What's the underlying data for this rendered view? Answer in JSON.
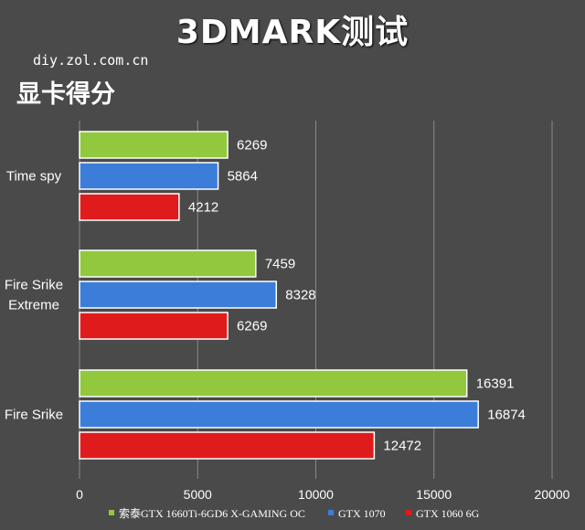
{
  "page": {
    "title": "3DMARK测试",
    "site": "diy.zol.com.cn",
    "subtitle": "显卡得分"
  },
  "chart_data": {
    "type": "bar",
    "orientation": "horizontal",
    "title": "3DMARK测试",
    "subtitle": "显卡得分",
    "categories": [
      "Time spy",
      "Fire Srike Extreme",
      "Fire Srike"
    ],
    "category_lines": [
      [
        "Time spy"
      ],
      [
        "Fire Srike",
        "Extreme"
      ],
      [
        "Fire Srike"
      ]
    ],
    "series": [
      {
        "name": "索泰GTX 1660Ti-6GD6 X-GAMING OC",
        "color": "#92c83e",
        "values": [
          6269,
          7459,
          16391
        ]
      },
      {
        "name": "GTX 1070",
        "color": "#3b7dd8",
        "values": [
          5864,
          8328,
          16874
        ]
      },
      {
        "name": "GTX 1060 6G",
        "color": "#e01b1b",
        "values": [
          4212,
          6269,
          12472
        ]
      }
    ],
    "xlim": [
      0,
      20000
    ],
    "xticks": [
      "0",
      "5000",
      "10000",
      "15000",
      "20000"
    ],
    "grid": true,
    "data_labels": true,
    "legend": "bottom"
  }
}
